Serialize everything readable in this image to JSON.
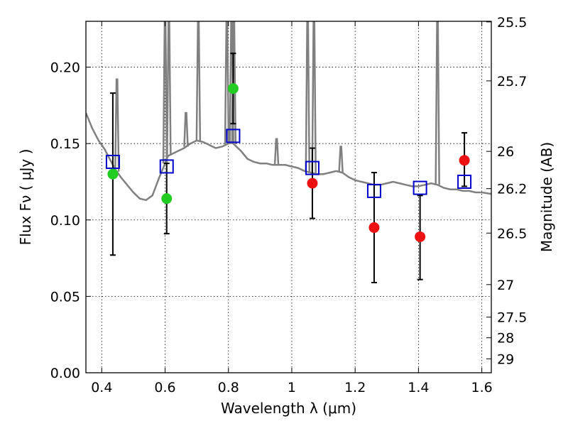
{
  "chart_data": {
    "type": "scatter",
    "xlabel": "Wavelength  λ (μm)",
    "ylabel": "Flux  Fν  ( μJy )",
    "y2label": "Magnitude (AB)",
    "xlim": [
      0.35,
      1.63
    ],
    "ylim": [
      0.0,
      0.23
    ],
    "grid": true,
    "x_ticks": [
      0.4,
      0.6,
      0.8,
      1.0,
      1.2,
      1.4,
      1.6
    ],
    "x_tick_labels": [
      "0.4",
      "0.6",
      "0.8",
      "1",
      "1.2",
      "1.4",
      "1.6"
    ],
    "y_ticks": [
      0.0,
      0.05,
      0.1,
      0.15,
      0.2
    ],
    "y_tick_labels": [
      "0.00",
      "0.05",
      "0.10",
      "0.15",
      "0.20"
    ],
    "y2_ticks": [
      {
        "label": "25.5",
        "flux": 0.2296
      },
      {
        "label": "25.7",
        "flux": 0.191
      },
      {
        "label": "26",
        "flux": 0.1449
      },
      {
        "label": "26.2",
        "flux": 0.1205
      },
      {
        "label": "26.5",
        "flux": 0.0914
      },
      {
        "label": "27",
        "flux": 0.0577
      },
      {
        "label": "27.5",
        "flux": 0.0364
      },
      {
        "label": "28",
        "flux": 0.0229
      },
      {
        "label": "29",
        "flux": 0.0091
      }
    ],
    "series": [
      {
        "kind": "model_spectrum",
        "color": "#808080",
        "x": [
          0.35,
          0.37,
          0.39,
          0.41,
          0.42,
          0.43,
          0.44,
          0.45,
          0.46,
          0.48,
          0.5,
          0.52,
          0.54,
          0.56,
          0.58,
          0.6,
          0.605,
          0.61,
          0.62,
          0.64,
          0.66,
          0.68,
          0.7,
          0.72,
          0.74,
          0.75,
          0.76,
          0.78,
          0.8,
          0.81,
          0.82,
          0.84,
          0.86,
          0.88,
          0.9,
          0.92,
          0.94,
          0.96,
          0.98,
          1.0,
          1.02,
          1.04,
          1.06,
          1.08,
          1.1,
          1.12,
          1.14,
          1.16,
          1.18,
          1.2,
          1.22,
          1.24,
          1.26,
          1.28,
          1.3,
          1.32,
          1.34,
          1.36,
          1.38,
          1.4,
          1.42,
          1.44,
          1.46,
          1.48,
          1.5,
          1.52,
          1.54,
          1.56,
          1.58,
          1.6,
          1.63
        ],
        "y": [
          0.17,
          0.16,
          0.152,
          0.146,
          0.142,
          0.138,
          0.134,
          0.131,
          0.128,
          0.123,
          0.118,
          0.114,
          0.113,
          0.116,
          0.127,
          0.137,
          0.14,
          0.142,
          0.143,
          0.145,
          0.147,
          0.15,
          0.152,
          0.151,
          0.149,
          0.148,
          0.147,
          0.148,
          0.15,
          0.151,
          0.149,
          0.145,
          0.14,
          0.138,
          0.137,
          0.137,
          0.136,
          0.136,
          0.136,
          0.135,
          0.134,
          0.132,
          0.131,
          0.13,
          0.13,
          0.131,
          0.132,
          0.131,
          0.128,
          0.126,
          0.125,
          0.124,
          0.123,
          0.123,
          0.124,
          0.125,
          0.124,
          0.123,
          0.122,
          0.122,
          0.123,
          0.124,
          0.123,
          0.121,
          0.12,
          0.12,
          0.119,
          0.119,
          0.118,
          0.118,
          0.117
        ]
      },
      {
        "kind": "emission_lines",
        "color": "#808080",
        "lines": [
          {
            "x": 0.448,
            "peak": 0.192
          },
          {
            "x": 0.6,
            "peak": 0.23
          },
          {
            "x": 0.612,
            "peak": 0.23
          },
          {
            "x": 0.666,
            "peak": 0.17
          },
          {
            "x": 0.705,
            "peak": 0.23
          },
          {
            "x": 0.795,
            "peak": 0.23
          },
          {
            "x": 0.81,
            "peak": 0.23
          },
          {
            "x": 0.817,
            "peak": 0.23
          },
          {
            "x": 0.952,
            "peak": 0.153
          },
          {
            "x": 1.05,
            "peak": 0.23
          },
          {
            "x": 1.07,
            "peak": 0.23
          },
          {
            "x": 1.155,
            "peak": 0.148
          },
          {
            "x": 1.46,
            "peak": 0.23
          }
        ]
      },
      {
        "kind": "model_photometry",
        "marker": "open-square",
        "color": "#0000cc",
        "x": [
          0.435,
          0.605,
          0.815,
          1.065,
          1.26,
          1.405,
          1.545
        ],
        "y": [
          0.138,
          0.135,
          0.155,
          0.134,
          0.119,
          0.121,
          0.125
        ]
      },
      {
        "kind": "observed_optical",
        "marker": "filled-circle",
        "color": "#22cc22",
        "x": [
          0.435,
          0.605,
          0.815
        ],
        "y": [
          0.13,
          0.114,
          0.186
        ]
      },
      {
        "kind": "observed_nir",
        "marker": "filled-circle",
        "color": "#ee1111",
        "x": [
          1.065,
          1.26,
          1.405,
          1.545
        ],
        "y": [
          0.124,
          0.095,
          0.089,
          0.139
        ]
      },
      {
        "kind": "error_bars",
        "color": "#000000",
        "x": [
          0.435,
          0.605,
          0.815,
          1.065,
          1.26,
          1.405,
          1.545
        ],
        "low": [
          0.077,
          0.091,
          0.163,
          0.101,
          0.059,
          0.061,
          0.122
        ],
        "high": [
          0.183,
          0.137,
          0.209,
          0.147,
          0.131,
          0.116,
          0.157
        ]
      }
    ]
  }
}
